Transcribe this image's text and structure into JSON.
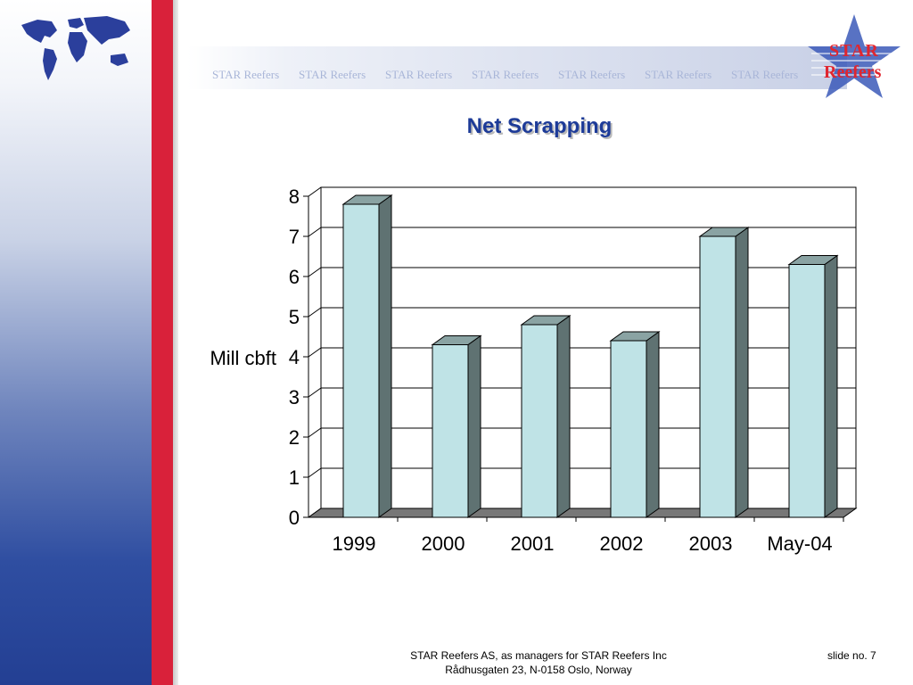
{
  "watermark_text": [
    "STAR Reefers",
    "STAR Reefers",
    "STAR Reefers",
    "STAR Reefers",
    "STAR Reefers",
    "STAR Reefers",
    "STAR Reefers"
  ],
  "logo": {
    "line1": "STAR",
    "line2": "Reefers"
  },
  "footer": {
    "line1": "STAR Reefers AS, as managers for STAR Reefers Inc",
    "line2": "Rådhusgaten 23, N-0158 Oslo, Norway",
    "slide_number": "slide no. 7"
  },
  "colors": {
    "bar_front": "#bfe3e6",
    "bar_side": "#5f7272",
    "bar_top": "#8aa3a3",
    "floor": "#777777",
    "title": "#1d3b98",
    "accent_red": "#d9213a",
    "brand_blue": "#233f93"
  },
  "chart_data": {
    "type": "bar",
    "title": "Net Scrapping",
    "ylabel": "Mill cbft",
    "xlabel": "",
    "categories": [
      "1999",
      "2000",
      "2001",
      "2002",
      "2003",
      "May-04"
    ],
    "values": [
      7.8,
      4.3,
      4.8,
      4.4,
      7.0,
      6.3
    ],
    "ylim": [
      0,
      8
    ],
    "yticks": [
      "0",
      "1",
      "2",
      "3",
      "4",
      "5",
      "6",
      "7",
      "8"
    ],
    "grid": true,
    "legend": "none",
    "style": "3d-column"
  }
}
